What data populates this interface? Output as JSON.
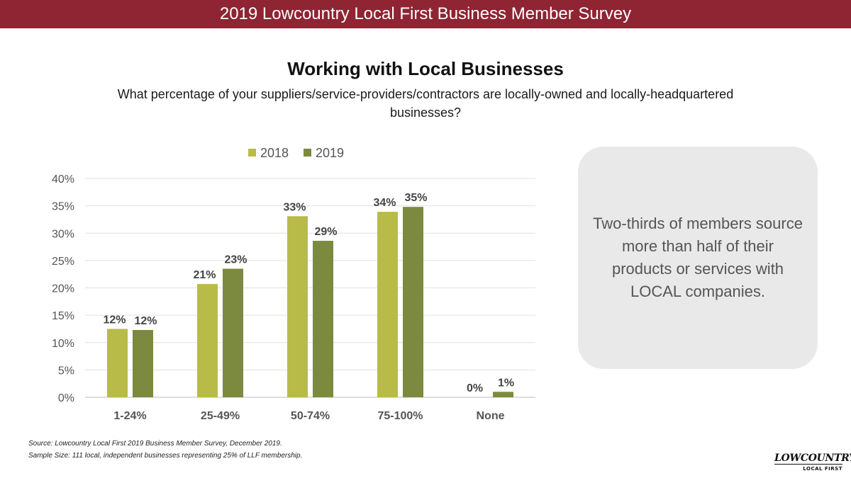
{
  "header": {
    "banner": "2019 Lowcountry Local First Business Member Survey"
  },
  "chart_data": {
    "type": "bar",
    "title": "Working with Local Businesses",
    "subtitle": "What percentage of your suppliers/service-providers/contractors are locally-owned and locally-headquartered businesses?",
    "categories": [
      "1-24%",
      "25-49%",
      "50-74%",
      "75-100%",
      "None"
    ],
    "series": [
      {
        "name": "2018",
        "values": [
          12,
          21,
          33,
          34,
          0
        ],
        "labels": [
          "12%",
          "21%",
          "33%",
          "34%",
          "0%"
        ],
        "color": "#b8bb47"
      },
      {
        "name": "2019",
        "values": [
          12,
          23,
          29,
          35,
          1
        ],
        "labels": [
          "12%",
          "23%",
          "29%",
          "35%",
          "1%"
        ],
        "color": "#7b8a3e"
      }
    ],
    "bar_heights_exact": [
      [
        12.5,
        20.7,
        33.1,
        33.9,
        0
      ],
      [
        12.3,
        23.5,
        28.6,
        34.8,
        1.0
      ]
    ],
    "ylim": [
      0,
      40
    ],
    "yticks": [
      "0%",
      "5%",
      "10%",
      "15%",
      "20%",
      "25%",
      "30%",
      "35%",
      "40%"
    ],
    "ytick_values": [
      0,
      5,
      10,
      15,
      20,
      25,
      30,
      35,
      40
    ],
    "grid": true,
    "legend": "top-center"
  },
  "callout": {
    "text": "Two-thirds of members source more than half of their products or services with LOCAL companies."
  },
  "footnotes": {
    "source": "Source: Lowcountry Local First 2019 Business Member Survey, December 2019.",
    "sample": "Sample Size: 111 local, independent businesses representing 25% of LLF membership."
  },
  "logo": {
    "main": "LOWCOUNTRY",
    "sub": "LOCAL FIRST"
  }
}
